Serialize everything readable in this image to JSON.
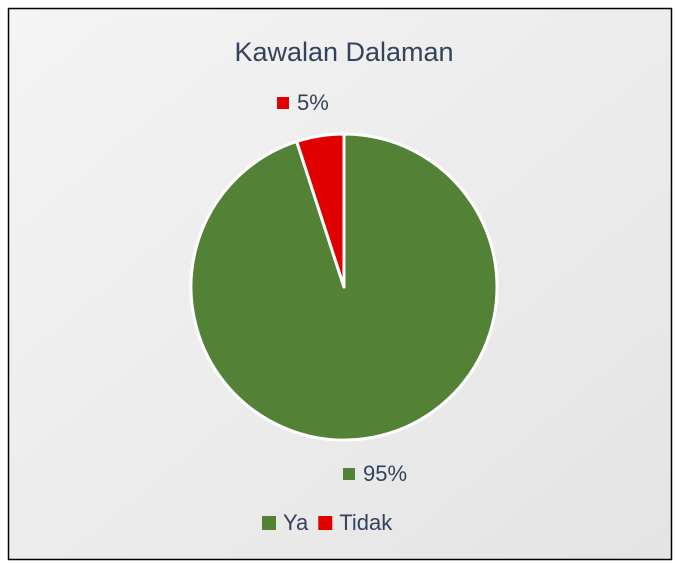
{
  "chart_data": {
    "type": "pie",
    "title": "Kawalan Dalaman",
    "categories": [
      "Ya",
      "Tidak"
    ],
    "values": [
      95,
      5
    ],
    "value_labels": [
      "95%",
      "5%"
    ],
    "colors": [
      "#538135",
      "#e00000"
    ]
  }
}
